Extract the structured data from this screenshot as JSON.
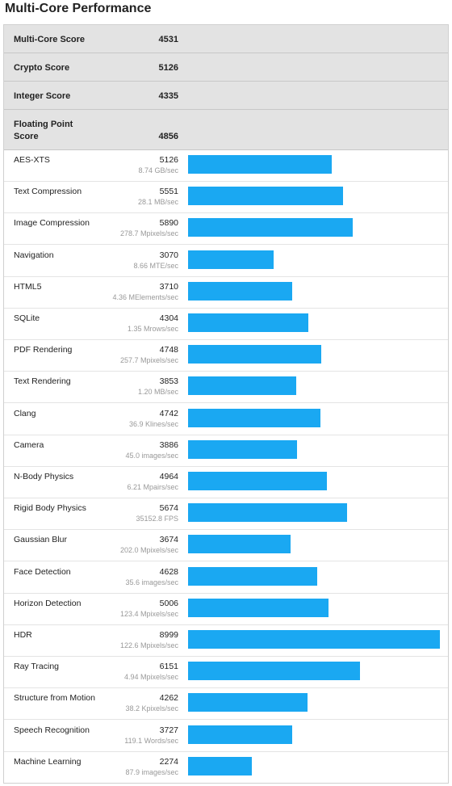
{
  "page_title": "Multi-Core Performance",
  "colors": {
    "bar": "#1aa8f2",
    "header_bg": "#e3e3e3"
  },
  "summary": [
    {
      "label": "Multi-Core Score",
      "value": "4531"
    },
    {
      "label": "Crypto Score",
      "value": "5126"
    },
    {
      "label": "Integer Score",
      "value": "4335"
    },
    {
      "label": "Floating Point Score",
      "value": "4856"
    }
  ],
  "chart_data": {
    "type": "bar",
    "orientation": "horizontal",
    "xlim": [
      0,
      8999
    ],
    "categories": [
      "AES-XTS",
      "Text Compression",
      "Image Compression",
      "Navigation",
      "HTML5",
      "SQLite",
      "PDF Rendering",
      "Text Rendering",
      "Clang",
      "Camera",
      "N-Body Physics",
      "Rigid Body Physics",
      "Gaussian Blur",
      "Face Detection",
      "Horizon Detection",
      "HDR",
      "Ray Tracing",
      "Structure from Motion",
      "Speech Recognition",
      "Machine Learning"
    ],
    "values": [
      5126,
      5551,
      5890,
      3070,
      3710,
      4304,
      4748,
      3853,
      4742,
      3886,
      4964,
      5674,
      3674,
      4628,
      5006,
      8999,
      6151,
      4262,
      3727,
      2274
    ],
    "rates": [
      "8.74 GB/sec",
      "28.1 MB/sec",
      "278.7 Mpixels/sec",
      "8.66 MTE/sec",
      "4.36 MElements/sec",
      "1.35 Mrows/sec",
      "257.7 Mpixels/sec",
      "1.20 MB/sec",
      "36.9 Klines/sec",
      "45.0 images/sec",
      "6.21 Mpairs/sec",
      "35152.8 FPS",
      "202.0 Mpixels/sec",
      "35.6 images/sec",
      "123.4 Mpixels/sec",
      "122.6 Mpixels/sec",
      "4.94 Mpixels/sec",
      "38.2 Kpixels/sec",
      "119.1 Words/sec",
      "87.9 images/sec"
    ]
  }
}
